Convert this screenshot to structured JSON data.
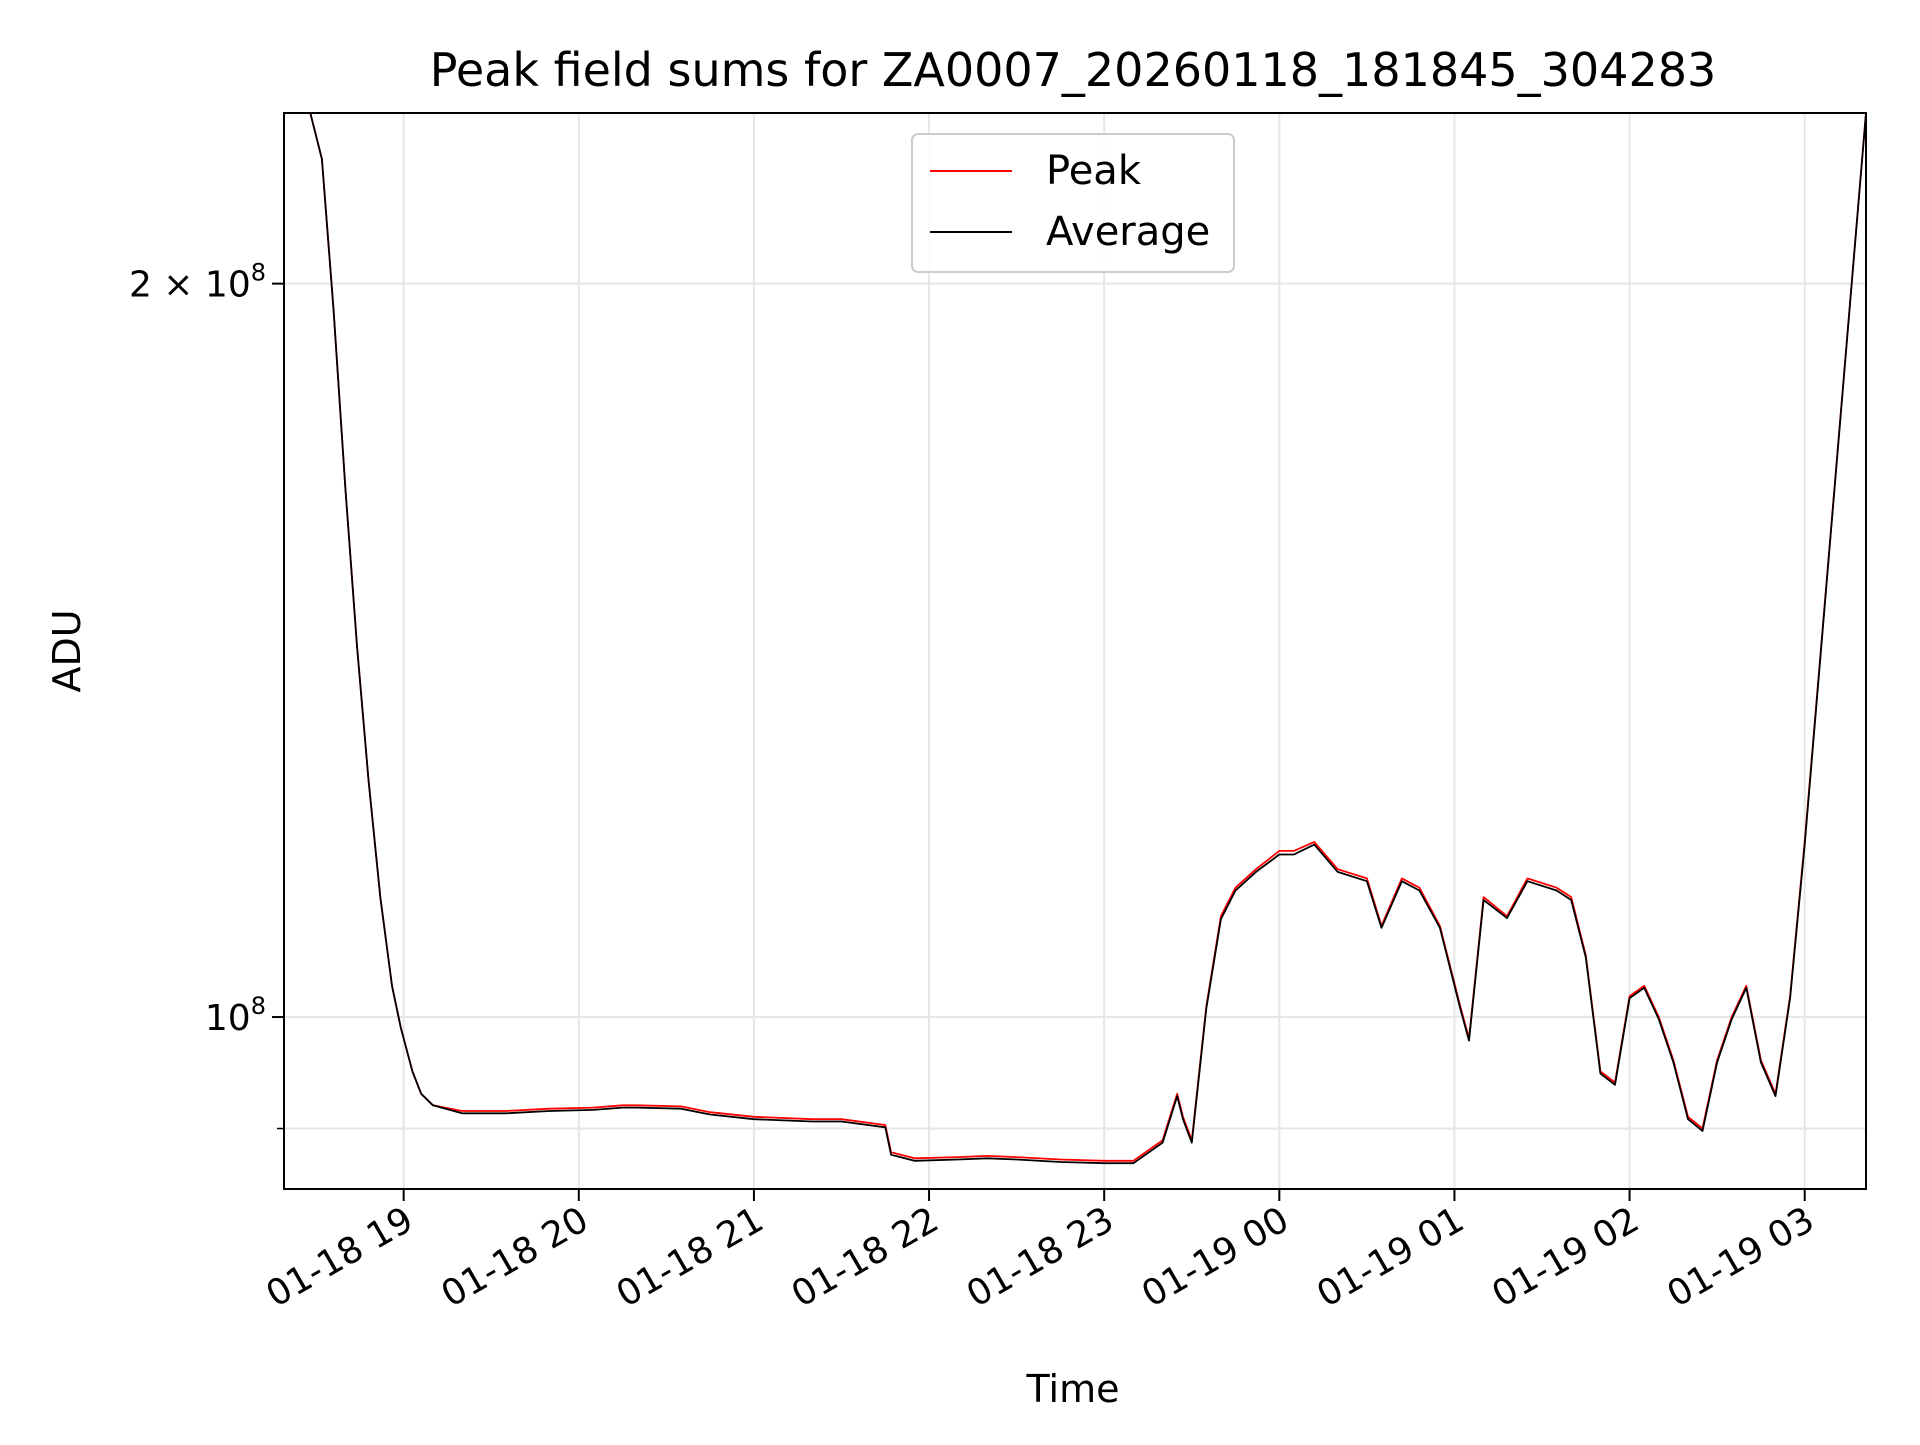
{
  "chart_data": {
    "type": "line",
    "title": "Peak field sums for ZA0007_20260118_181845_304283",
    "xlabel": "Time",
    "ylabel": "ADU",
    "x_ticks": [
      "01-18 19",
      "01-18 20",
      "01-18 21",
      "01-18 22",
      "01-18 23",
      "01-19 00",
      "01-19 01",
      "01-19 02",
      "01-19 03"
    ],
    "x_tick_times": [
      "2026-01-18T19:00",
      "2026-01-18T20:00",
      "2026-01-18T21:00",
      "2026-01-18T22:00",
      "2026-01-18T23:00",
      "2026-01-19T00:00",
      "2026-01-19T01:00",
      "2026-01-19T02:00",
      "2026-01-19T03:00"
    ],
    "xlim": [
      "2026-01-18T18:19",
      "2026-01-19T03:21"
    ],
    "y_scale": "log",
    "ylim": [
      85000000,
      235000000
    ],
    "y_ticks": [
      {
        "value": 200000000,
        "base_label": "2 × 10",
        "exp": "8"
      },
      {
        "value": 100000000,
        "base_label": "10",
        "exp": "8"
      }
    ],
    "y_minor_ticks": [
      90000000
    ],
    "grid": true,
    "legend_position": "upper center",
    "series": [
      {
        "name": "Peak",
        "color": "#ff0000",
        "x": [
          "2026-01-18T18:19",
          "2026-01-18T18:28",
          "2026-01-18T18:32",
          "2026-01-18T18:36",
          "2026-01-18T18:40",
          "2026-01-18T18:44",
          "2026-01-18T18:48",
          "2026-01-18T18:52",
          "2026-01-18T18:56",
          "2026-01-18T18:59",
          "2026-01-18T19:03",
          "2026-01-18T19:06",
          "2026-01-18T19:10",
          "2026-01-18T19:20",
          "2026-01-18T19:35",
          "2026-01-18T19:50",
          "2026-01-18T20:05",
          "2026-01-18T20:15",
          "2026-01-18T20:20",
          "2026-01-18T20:35",
          "2026-01-18T20:45",
          "2026-01-18T21:00",
          "2026-01-18T21:20",
          "2026-01-18T21:30",
          "2026-01-18T21:45",
          "2026-01-18T21:47",
          "2026-01-18T21:55",
          "2026-01-18T22:10",
          "2026-01-18T22:20",
          "2026-01-18T22:30",
          "2026-01-18T22:45",
          "2026-01-18T23:00",
          "2026-01-18T23:10",
          "2026-01-18T23:20",
          "2026-01-18T23:25",
          "2026-01-18T23:27",
          "2026-01-18T23:30",
          "2026-01-18T23:35",
          "2026-01-18T23:40",
          "2026-01-18T23:45",
          "2026-01-18T23:52",
          "2026-01-19T00:00",
          "2026-01-19T00:05",
          "2026-01-19T00:12",
          "2026-01-19T00:20",
          "2026-01-19T00:30",
          "2026-01-19T00:35",
          "2026-01-19T00:42",
          "2026-01-19T00:48",
          "2026-01-19T00:55",
          "2026-01-19T01:02",
          "2026-01-19T01:05",
          "2026-01-19T01:10",
          "2026-01-19T01:18",
          "2026-01-19T01:25",
          "2026-01-19T01:35",
          "2026-01-19T01:40",
          "2026-01-19T01:45",
          "2026-01-19T01:50",
          "2026-01-19T01:55",
          "2026-01-19T02:00",
          "2026-01-19T02:05",
          "2026-01-19T02:10",
          "2026-01-19T02:15",
          "2026-01-19T02:20",
          "2026-01-19T02:25",
          "2026-01-19T02:30",
          "2026-01-19T02:35",
          "2026-01-19T02:40",
          "2026-01-19T02:45",
          "2026-01-19T02:50",
          "2026-01-19T02:55",
          "2026-01-19T03:00",
          "2026-01-19T03:21"
        ],
        "y": [
          235000000,
          235000000,
          225000000,
          195000000,
          165000000,
          142000000,
          125000000,
          112000000,
          103000000,
          99000000,
          95000000,
          93000000,
          92000000,
          91500000,
          91500000,
          91700000,
          91800000,
          92000000,
          92000000,
          91900000,
          91400000,
          91000000,
          90800000,
          90800000,
          90300000,
          88000000,
          87500000,
          87600000,
          87700000,
          87600000,
          87400000,
          87300000,
          87300000,
          89000000,
          93000000,
          91000000,
          89000000,
          101000000,
          110000000,
          113000000,
          115000000,
          117000000,
          117000000,
          118000000,
          115000000,
          114000000,
          109000000,
          114000000,
          113000000,
          109000000,
          101000000,
          98000000,
          112000000,
          110000000,
          114000000,
          113000000,
          112000000,
          106000000,
          95000000,
          94000000,
          102000000,
          103000000,
          100000000,
          96000000,
          91000000,
          90000000,
          96000000,
          100000000,
          103000000,
          96000000,
          93000000,
          102000000,
          118000000,
          235000000
        ]
      },
      {
        "name": "Average",
        "color": "#000000",
        "x": [
          "2026-01-18T18:19",
          "2026-01-18T18:28",
          "2026-01-18T18:32",
          "2026-01-18T18:36",
          "2026-01-18T18:40",
          "2026-01-18T18:44",
          "2026-01-18T18:48",
          "2026-01-18T18:52",
          "2026-01-18T18:56",
          "2026-01-18T18:59",
          "2026-01-18T19:03",
          "2026-01-18T19:06",
          "2026-01-18T19:10",
          "2026-01-18T19:20",
          "2026-01-18T19:35",
          "2026-01-18T19:50",
          "2026-01-18T20:05",
          "2026-01-18T20:15",
          "2026-01-18T20:20",
          "2026-01-18T20:35",
          "2026-01-18T20:45",
          "2026-01-18T21:00",
          "2026-01-18T21:20",
          "2026-01-18T21:30",
          "2026-01-18T21:45",
          "2026-01-18T21:47",
          "2026-01-18T21:55",
          "2026-01-18T22:10",
          "2026-01-18T22:20",
          "2026-01-18T22:30",
          "2026-01-18T22:45",
          "2026-01-18T23:00",
          "2026-01-18T23:10",
          "2026-01-18T23:20",
          "2026-01-18T23:25",
          "2026-01-18T23:27",
          "2026-01-18T23:30",
          "2026-01-18T23:35",
          "2026-01-18T23:40",
          "2026-01-18T23:45",
          "2026-01-18T23:52",
          "2026-01-19T00:00",
          "2026-01-19T00:05",
          "2026-01-19T00:12",
          "2026-01-19T00:20",
          "2026-01-19T00:30",
          "2026-01-19T00:35",
          "2026-01-19T00:42",
          "2026-01-19T00:48",
          "2026-01-19T00:55",
          "2026-01-19T01:02",
          "2026-01-19T01:05",
          "2026-01-19T01:10",
          "2026-01-19T01:18",
          "2026-01-19T01:25",
          "2026-01-19T01:35",
          "2026-01-19T01:40",
          "2026-01-19T01:45",
          "2026-01-19T01:50",
          "2026-01-19T01:55",
          "2026-01-19T02:00",
          "2026-01-19T02:05",
          "2026-01-19T02:10",
          "2026-01-19T02:15",
          "2026-01-19T02:20",
          "2026-01-19T02:25",
          "2026-01-19T02:30",
          "2026-01-19T02:35",
          "2026-01-19T02:40",
          "2026-01-19T02:45",
          "2026-01-19T02:50",
          "2026-01-19T02:55",
          "2026-01-19T03:00",
          "2026-01-19T03:21"
        ],
        "y": [
          235000000,
          235000000,
          225000000,
          195000000,
          165000000,
          142000000,
          125000000,
          112000000,
          103000000,
          99000000,
          95000000,
          93000000,
          92000000,
          91300000,
          91300000,
          91500000,
          91600000,
          91800000,
          91800000,
          91700000,
          91200000,
          90800000,
          90600000,
          90600000,
          90100000,
          87800000,
          87300000,
          87400000,
          87500000,
          87400000,
          87200000,
          87100000,
          87100000,
          88800000,
          92800000,
          90800000,
          88800000,
          100800000,
          109700000,
          112700000,
          114700000,
          116600000,
          116600000,
          117700000,
          114700000,
          113700000,
          108800000,
          113700000,
          112700000,
          108800000,
          100800000,
          97800000,
          111700000,
          109800000,
          113700000,
          112700000,
          111700000,
          105800000,
          94800000,
          93800000,
          101800000,
          102800000,
          99800000,
          95800000,
          90800000,
          89800000,
          95800000,
          99800000,
          102800000,
          95800000,
          92800000,
          101800000,
          117700000,
          235000000
        ]
      }
    ]
  }
}
